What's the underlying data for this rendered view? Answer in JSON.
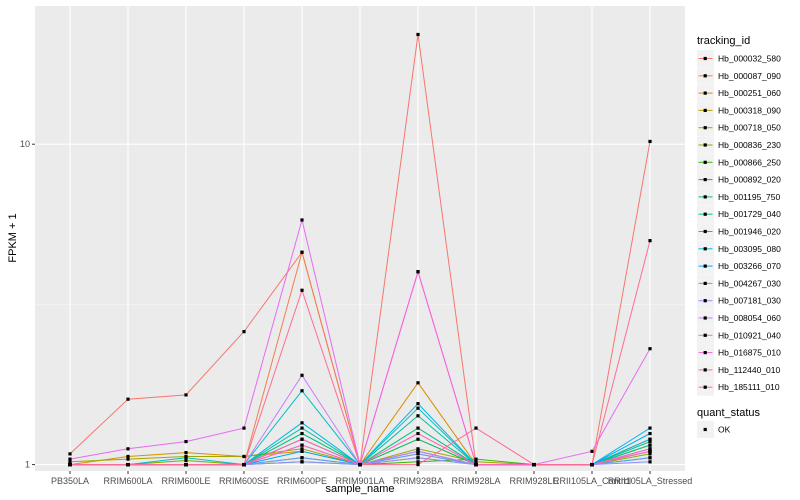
{
  "chart_data": {
    "type": "line",
    "xlabel": "sample_name",
    "ylabel": "FPKM + 1",
    "y_scale": "log10",
    "ylim": [
      0.955,
      27
    ],
    "y_ticks": [
      1,
      10
    ],
    "y_tick_labels": [
      "1",
      "10"
    ],
    "grid": true,
    "legend_position": "right",
    "categories": [
      "PB350LA",
      "RRIM600LA",
      "RRIM600LE",
      "RRIM600SE",
      "RRIM600PE",
      "RRIM901LA",
      "RRIM928BA",
      "RRIM928LA",
      "RRIM928LE",
      "RRII105LA_Control",
      "RRII105LA_Stressed"
    ],
    "legend_title": "tracking_id",
    "series": [
      {
        "name": "Hb_000032_580",
        "color": "#F8766D",
        "values": [
          1.08,
          1.6,
          1.65,
          2.6,
          4.6,
          1.0,
          22.0,
          1.0,
          1.0,
          1.0,
          10.2
        ]
      },
      {
        "name": "Hb_000087_090",
        "color": "#F07E4E",
        "values": [
          1.0,
          1.0,
          1.0,
          1.0,
          4.6,
          1.0,
          1.08,
          1.0,
          1.0,
          1.0,
          1.2
        ]
      },
      {
        "name": "Hb_000251_060",
        "color": "#D89000",
        "values": [
          1.0,
          1.06,
          1.09,
          1.06,
          1.1,
          1.0,
          1.8,
          1.0,
          1.0,
          1.0,
          1.15
        ]
      },
      {
        "name": "Hb_000318_090",
        "color": "#C09B00",
        "values": [
          1.0,
          1.0,
          1.0,
          1.0,
          1.15,
          1.0,
          1.1,
          1.0,
          1.0,
          1.0,
          1.1
        ]
      },
      {
        "name": "Hb_000718_050",
        "color": "#A3A500",
        "values": [
          1.02,
          1.04,
          1.06,
          1.06,
          1.12,
          1.0,
          1.12,
          1.02,
          1.0,
          1.0,
          1.1
        ]
      },
      {
        "name": "Hb_000836_230",
        "color": "#7CAE00",
        "values": [
          1.0,
          1.0,
          1.03,
          1.0,
          1.05,
          1.0,
          1.05,
          1.0,
          1.0,
          1.0,
          1.08
        ]
      },
      {
        "name": "Hb_000866_250",
        "color": "#39B600",
        "values": [
          1.0,
          1.0,
          1.0,
          1.0,
          1.02,
          1.0,
          1.02,
          1.04,
          1.0,
          1.0,
          1.05
        ]
      },
      {
        "name": "Hb_000892_020",
        "color": "#00BB4E",
        "values": [
          1.0,
          1.0,
          1.0,
          1.0,
          1.2,
          1.0,
          1.2,
          1.0,
          1.0,
          1.0,
          1.12
        ]
      },
      {
        "name": "Hb_001195_750",
        "color": "#00BF7D",
        "values": [
          1.0,
          1.0,
          1.0,
          1.0,
          1.25,
          1.0,
          1.3,
          1.0,
          1.0,
          1.0,
          1.15
        ]
      },
      {
        "name": "Hb_001729_040",
        "color": "#00C1A3",
        "values": [
          1.0,
          1.0,
          1.0,
          1.0,
          1.3,
          1.0,
          1.42,
          1.0,
          1.0,
          1.0,
          1.18
        ]
      },
      {
        "name": "Hb_001946_020",
        "color": "#00BFC4",
        "values": [
          1.0,
          1.0,
          1.05,
          1.0,
          1.7,
          1.0,
          1.5,
          1.0,
          1.0,
          1.0,
          1.2
        ]
      },
      {
        "name": "Hb_003095_080",
        "color": "#00B8E5",
        "values": [
          1.0,
          1.0,
          1.0,
          1.0,
          1.35,
          1.0,
          1.55,
          1.0,
          1.0,
          1.0,
          1.3
        ]
      },
      {
        "name": "Hb_003266_070",
        "color": "#00A9FF",
        "values": [
          1.0,
          1.0,
          1.0,
          1.0,
          1.1,
          1.0,
          1.1,
          1.0,
          1.0,
          1.0,
          1.25
        ]
      },
      {
        "name": "Hb_004267_030",
        "color": "#619CFF",
        "values": [
          1.0,
          1.0,
          1.0,
          1.0,
          1.05,
          1.0,
          1.08,
          1.0,
          1.0,
          1.0,
          1.05
        ]
      },
      {
        "name": "Hb_007181_030",
        "color": "#8F91FF",
        "values": [
          1.0,
          1.0,
          1.0,
          1.0,
          1.02,
          1.0,
          1.05,
          1.0,
          1.0,
          1.0,
          1.02
        ]
      },
      {
        "name": "Hb_008054_060",
        "color": "#C77CFF",
        "values": [
          1.0,
          1.0,
          1.0,
          1.0,
          1.9,
          1.0,
          1.1,
          1.0,
          1.0,
          1.0,
          1.1
        ]
      },
      {
        "name": "Hb_010921_040",
        "color": "#E76BF3",
        "values": [
          1.04,
          1.12,
          1.18,
          1.3,
          5.8,
          1.0,
          4.0,
          1.0,
          1.0,
          1.1,
          2.3
        ]
      },
      {
        "name": "Hb_016875_010",
        "color": "#FA62DB",
        "values": [
          1.0,
          1.0,
          1.0,
          1.0,
          1.15,
          1.0,
          4.0,
          1.0,
          1.0,
          1.0,
          1.12
        ]
      },
      {
        "name": "Hb_112440_010",
        "color": "#FF62BC",
        "values": [
          1.0,
          1.0,
          1.0,
          1.0,
          1.2,
          1.0,
          1.25,
          1.0,
          1.0,
          1.0,
          1.1
        ]
      },
      {
        "name": "Hb_185111_010",
        "color": "#FF6C91",
        "values": [
          1.0,
          1.0,
          1.0,
          1.0,
          3.5,
          1.0,
          1.0,
          1.3,
          1.0,
          1.0,
          5.0
        ]
      }
    ],
    "shape_legend": {
      "title": "quant_status",
      "items": [
        "OK"
      ]
    }
  }
}
